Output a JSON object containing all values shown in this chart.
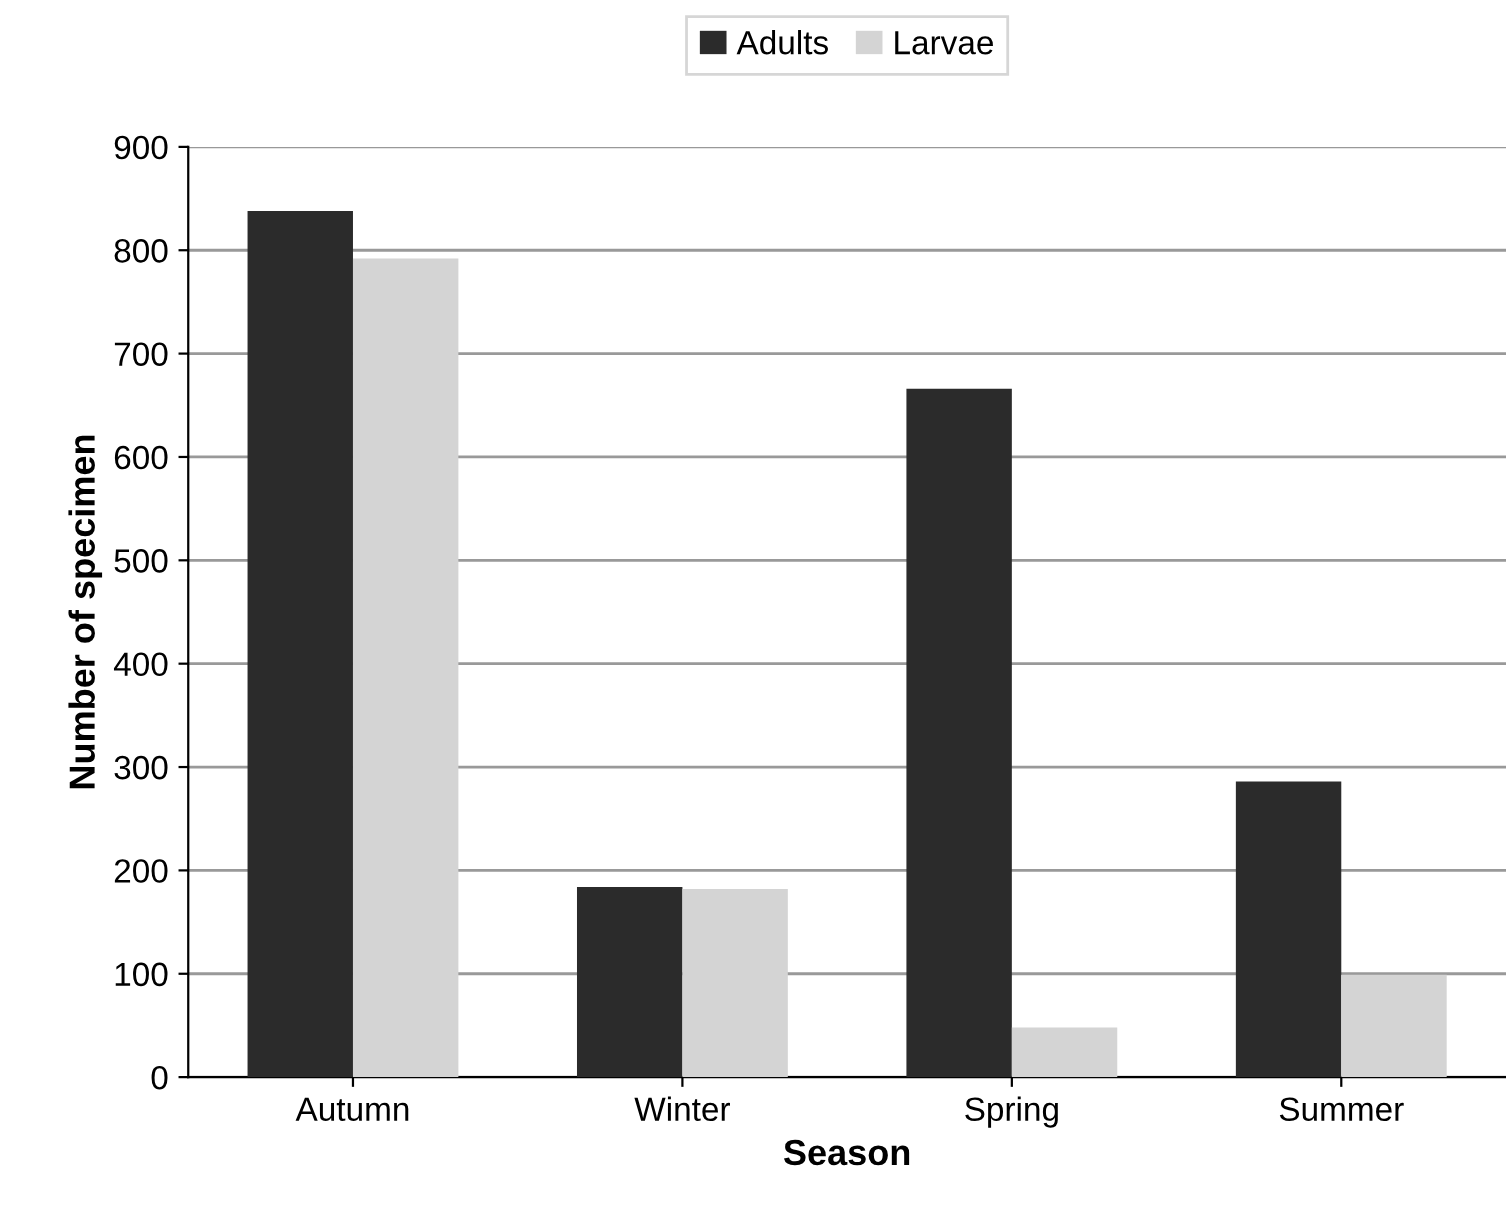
{
  "chart_data": {
    "type": "bar",
    "xlabel": "Season",
    "ylabel": "Number of specimen",
    "categories": [
      "Autumn",
      "Winter",
      "Spring",
      "Summer"
    ],
    "series": [
      {
        "name": "Adults",
        "color": "#2b2b2b",
        "values": [
          838,
          184,
          666,
          286
        ]
      },
      {
        "name": "Larvae",
        "color": "#d4d4d4",
        "values": [
          792,
          182,
          48,
          99
        ]
      }
    ],
    "ylim": [
      0,
      900
    ],
    "yticks": [
      0,
      100,
      200,
      300,
      400,
      500,
      600,
      700,
      800,
      900
    ],
    "grid": "y",
    "legend": "top"
  }
}
